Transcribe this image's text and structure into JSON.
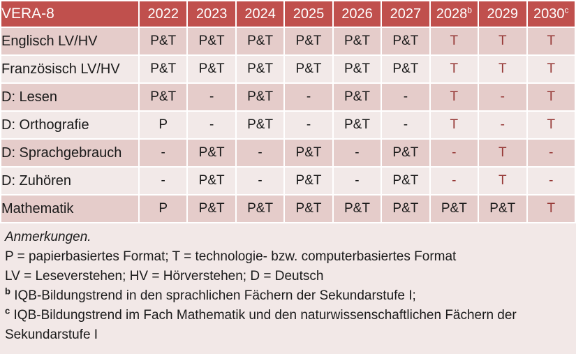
{
  "table": {
    "title": "VERA-8",
    "columns": [
      {
        "label": "2022",
        "sup": ""
      },
      {
        "label": "2023",
        "sup": ""
      },
      {
        "label": "2024",
        "sup": ""
      },
      {
        "label": "2025",
        "sup": ""
      },
      {
        "label": "2026",
        "sup": ""
      },
      {
        "label": "2027",
        "sup": ""
      },
      {
        "label": "2028",
        "sup": "b"
      },
      {
        "label": "2029",
        "sup": ""
      },
      {
        "label": "2030",
        "sup": "c"
      }
    ],
    "rows": [
      {
        "label": "Englisch LV/HV",
        "cells": [
          {
            "text": "P&T",
            "red": false
          },
          {
            "text": "P&T",
            "red": false
          },
          {
            "text": "P&T",
            "red": false
          },
          {
            "text": "P&T",
            "red": false
          },
          {
            "text": "P&T",
            "red": false
          },
          {
            "text": "P&T",
            "red": false
          },
          {
            "text": "T",
            "red": true
          },
          {
            "text": "T",
            "red": true
          },
          {
            "text": "T",
            "red": true
          }
        ]
      },
      {
        "label": "Französisch LV/HV",
        "cells": [
          {
            "text": "P&T",
            "red": false
          },
          {
            "text": "P&T",
            "red": false
          },
          {
            "text": "P&T",
            "red": false
          },
          {
            "text": "P&T",
            "red": false
          },
          {
            "text": "P&T",
            "red": false
          },
          {
            "text": "P&T",
            "red": false
          },
          {
            "text": "T",
            "red": true
          },
          {
            "text": "T",
            "red": true
          },
          {
            "text": "T",
            "red": true
          }
        ]
      },
      {
        "label": "D: Lesen",
        "cells": [
          {
            "text": "P&T",
            "red": false
          },
          {
            "text": "-",
            "red": false
          },
          {
            "text": "P&T",
            "red": false
          },
          {
            "text": "-",
            "red": false
          },
          {
            "text": "P&T",
            "red": false
          },
          {
            "text": "-",
            "red": false
          },
          {
            "text": "T",
            "red": true
          },
          {
            "text": "-",
            "red": true
          },
          {
            "text": "T",
            "red": true
          }
        ]
      },
      {
        "label": "D: Orthografie",
        "cells": [
          {
            "text": "P",
            "red": false
          },
          {
            "text": "-",
            "red": false
          },
          {
            "text": "P&T",
            "red": false
          },
          {
            "text": "-",
            "red": false
          },
          {
            "text": "P&T",
            "red": false
          },
          {
            "text": "-",
            "red": false
          },
          {
            "text": "T",
            "red": true
          },
          {
            "text": "-",
            "red": true
          },
          {
            "text": "T",
            "red": true
          }
        ]
      },
      {
        "label": "D: Sprachgebrauch",
        "cells": [
          {
            "text": "-",
            "red": false
          },
          {
            "text": "P&T",
            "red": false
          },
          {
            "text": "-",
            "red": false
          },
          {
            "text": "P&T",
            "red": false
          },
          {
            "text": "-",
            "red": false
          },
          {
            "text": "P&T",
            "red": false
          },
          {
            "text": "-",
            "red": true
          },
          {
            "text": "T",
            "red": true
          },
          {
            "text": "-",
            "red": true
          }
        ]
      },
      {
        "label": "D: Zuhören",
        "cells": [
          {
            "text": "-",
            "red": false
          },
          {
            "text": "P&T",
            "red": false
          },
          {
            "text": "-",
            "red": false
          },
          {
            "text": "P&T",
            "red": false
          },
          {
            "text": "-",
            "red": false
          },
          {
            "text": "P&T",
            "red": false
          },
          {
            "text": "-",
            "red": true
          },
          {
            "text": "T",
            "red": true
          },
          {
            "text": "-",
            "red": true
          }
        ]
      },
      {
        "label": "Mathematik",
        "cells": [
          {
            "text": "P",
            "red": false
          },
          {
            "text": "P&T",
            "red": false
          },
          {
            "text": "P&T",
            "red": false
          },
          {
            "text": "P&T",
            "red": false
          },
          {
            "text": "P&T",
            "red": false
          },
          {
            "text": "P&T",
            "red": false
          },
          {
            "text": "P&T",
            "red": false
          },
          {
            "text": "P&T",
            "red": false
          },
          {
            "text": "T",
            "red": true
          }
        ]
      }
    ]
  },
  "notes": {
    "heading": "Anmerkungen.",
    "lines": [
      {
        "sup": "",
        "text": "P = papierbasiertes Format; T = technologie- bzw. computerbasiertes Format"
      },
      {
        "sup": "",
        "text": "LV = Leseverstehen; HV = Hörverstehen; D = Deutsch"
      },
      {
        "sup": "b",
        "text": "IQB-Bildungstrend in den sprachlichen Fächern der Sekundarstufe I;"
      },
      {
        "sup": "c",
        "text": "IQB-Bildungstrend im Fach Mathematik und den naturwissenschaftlichen Fächern der Sekundarstufe I"
      }
    ]
  },
  "colors": {
    "header_bg": "#C0504D",
    "header_text": "#FFFFFF",
    "row_dark": "#E5CCCA",
    "row_light": "#F2E9E8",
    "notes_bg": "#F2E8E7",
    "red_text": "#953735",
    "black_text": "#1A1A1A",
    "grid": "#FFFFFF"
  }
}
